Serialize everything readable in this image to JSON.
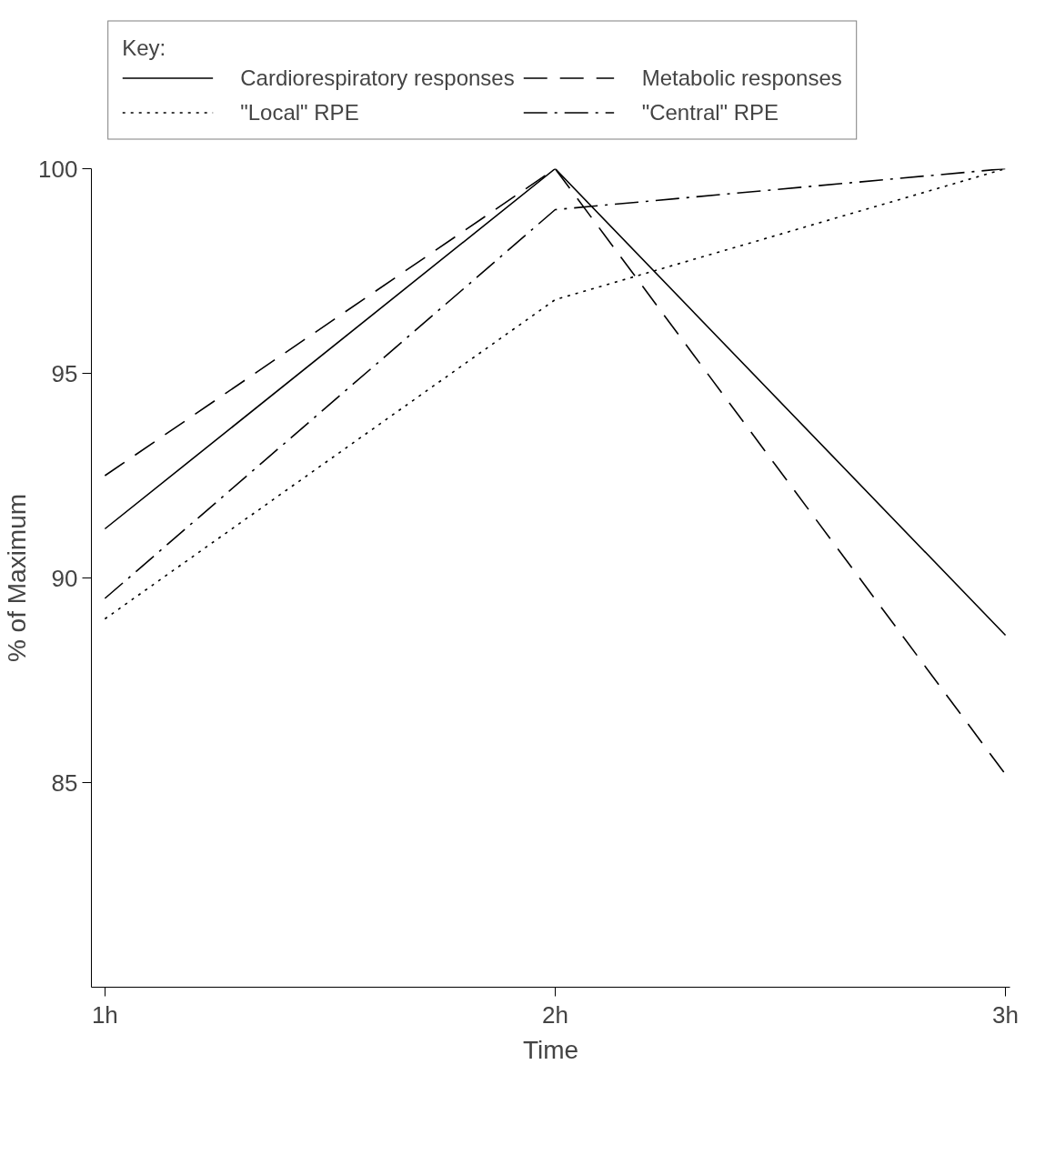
{
  "chart_data": {
    "type": "line",
    "xlabel": "Time",
    "ylabel": "% of Maximum",
    "legend_title": "Key:",
    "categories": [
      "1h",
      "2h",
      "3h"
    ],
    "series": [
      {
        "name": "Cardiorespiratory responses",
        "color": "#000000",
        "line_style": "solid",
        "values": [
          91.2,
          100,
          88.6
        ]
      },
      {
        "name": "Metabolic responses",
        "color": "#000000",
        "line_style": "dashed",
        "values": [
          92.5,
          100,
          85.2
        ]
      },
      {
        "name": "\"Local\" RPE",
        "color": "#000000",
        "line_style": "dotted",
        "values": [
          89.0,
          96.8,
          100
        ]
      },
      {
        "name": "\"Central\" RPE",
        "color": "#000000",
        "line_style": "dashdot",
        "values": [
          89.5,
          99.0,
          100
        ]
      }
    ],
    "ylim": [
      80,
      100
    ],
    "yticks": [
      85,
      90,
      95,
      100
    ],
    "grid": false,
    "legend": "top",
    "marker": "none"
  }
}
